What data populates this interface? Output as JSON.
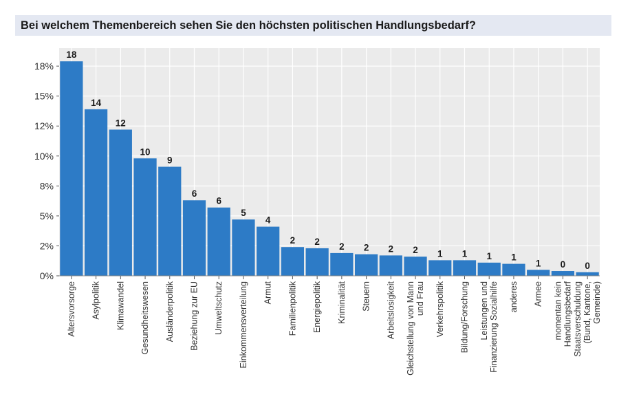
{
  "title": "Bei welchem Themenbereich sehen Sie den höchsten politischen Handlungsbedarf?",
  "chart_data": {
    "type": "bar",
    "title": "Bei welchem Themenbereich sehen Sie den höchsten politischen Handlungsbedarf?",
    "xlabel": "",
    "ylabel": "",
    "ylim": [
      0,
      19
    ],
    "ytick_values": [
      0,
      2.5,
      5,
      7.5,
      10,
      12.5,
      15,
      17.5
    ],
    "ytick_labels": [
      "0%",
      "2%",
      "5%",
      "8%",
      "10%",
      "12%",
      "15%",
      "18%"
    ],
    "grid": true,
    "bar_color": "#2d7bc6",
    "categories": [
      [
        "Altersvorsorge"
      ],
      [
        "Asylpolitik"
      ],
      [
        "Klimawandel"
      ],
      [
        "Gesundheitswesen"
      ],
      [
        "Ausländerpolitik"
      ],
      [
        "Beziehung zur EU"
      ],
      [
        "Umweltschutz"
      ],
      [
        "Einkommensverteilung"
      ],
      [
        "Armut"
      ],
      [
        "Familienpolitik"
      ],
      [
        "Energiepolitik"
      ],
      [
        "Kriminalität"
      ],
      [
        "Steuern"
      ],
      [
        "Arbeitslosigkeit"
      ],
      [
        "Gleichstellung von Mann",
        "und Frau"
      ],
      [
        "Verkehrspolitik"
      ],
      [
        "Bildung/Forschung"
      ],
      [
        "Leistungen und",
        "Finanzierung Sozialhilfe"
      ],
      [
        "anderes"
      ],
      [
        "Armee"
      ],
      [
        "momentan kein",
        "Handlungsbedarf"
      ],
      [
        "Staatsverschuldung",
        "(Bund, Kantone,",
        "Gemeinde)"
      ]
    ],
    "values": [
      17.9,
      13.9,
      12.2,
      9.8,
      9.1,
      6.3,
      5.7,
      4.7,
      4.1,
      2.4,
      2.3,
      1.9,
      1.8,
      1.7,
      1.6,
      1.3,
      1.3,
      1.1,
      1.0,
      0.5,
      0.4,
      0.3
    ],
    "data_labels": [
      "18",
      "14",
      "12",
      "10",
      "9",
      "6",
      "6",
      "5",
      "4",
      "2",
      "2",
      "2",
      "2",
      "2",
      "2",
      "1",
      "1",
      "1",
      "1",
      "1",
      "0",
      "0"
    ]
  }
}
